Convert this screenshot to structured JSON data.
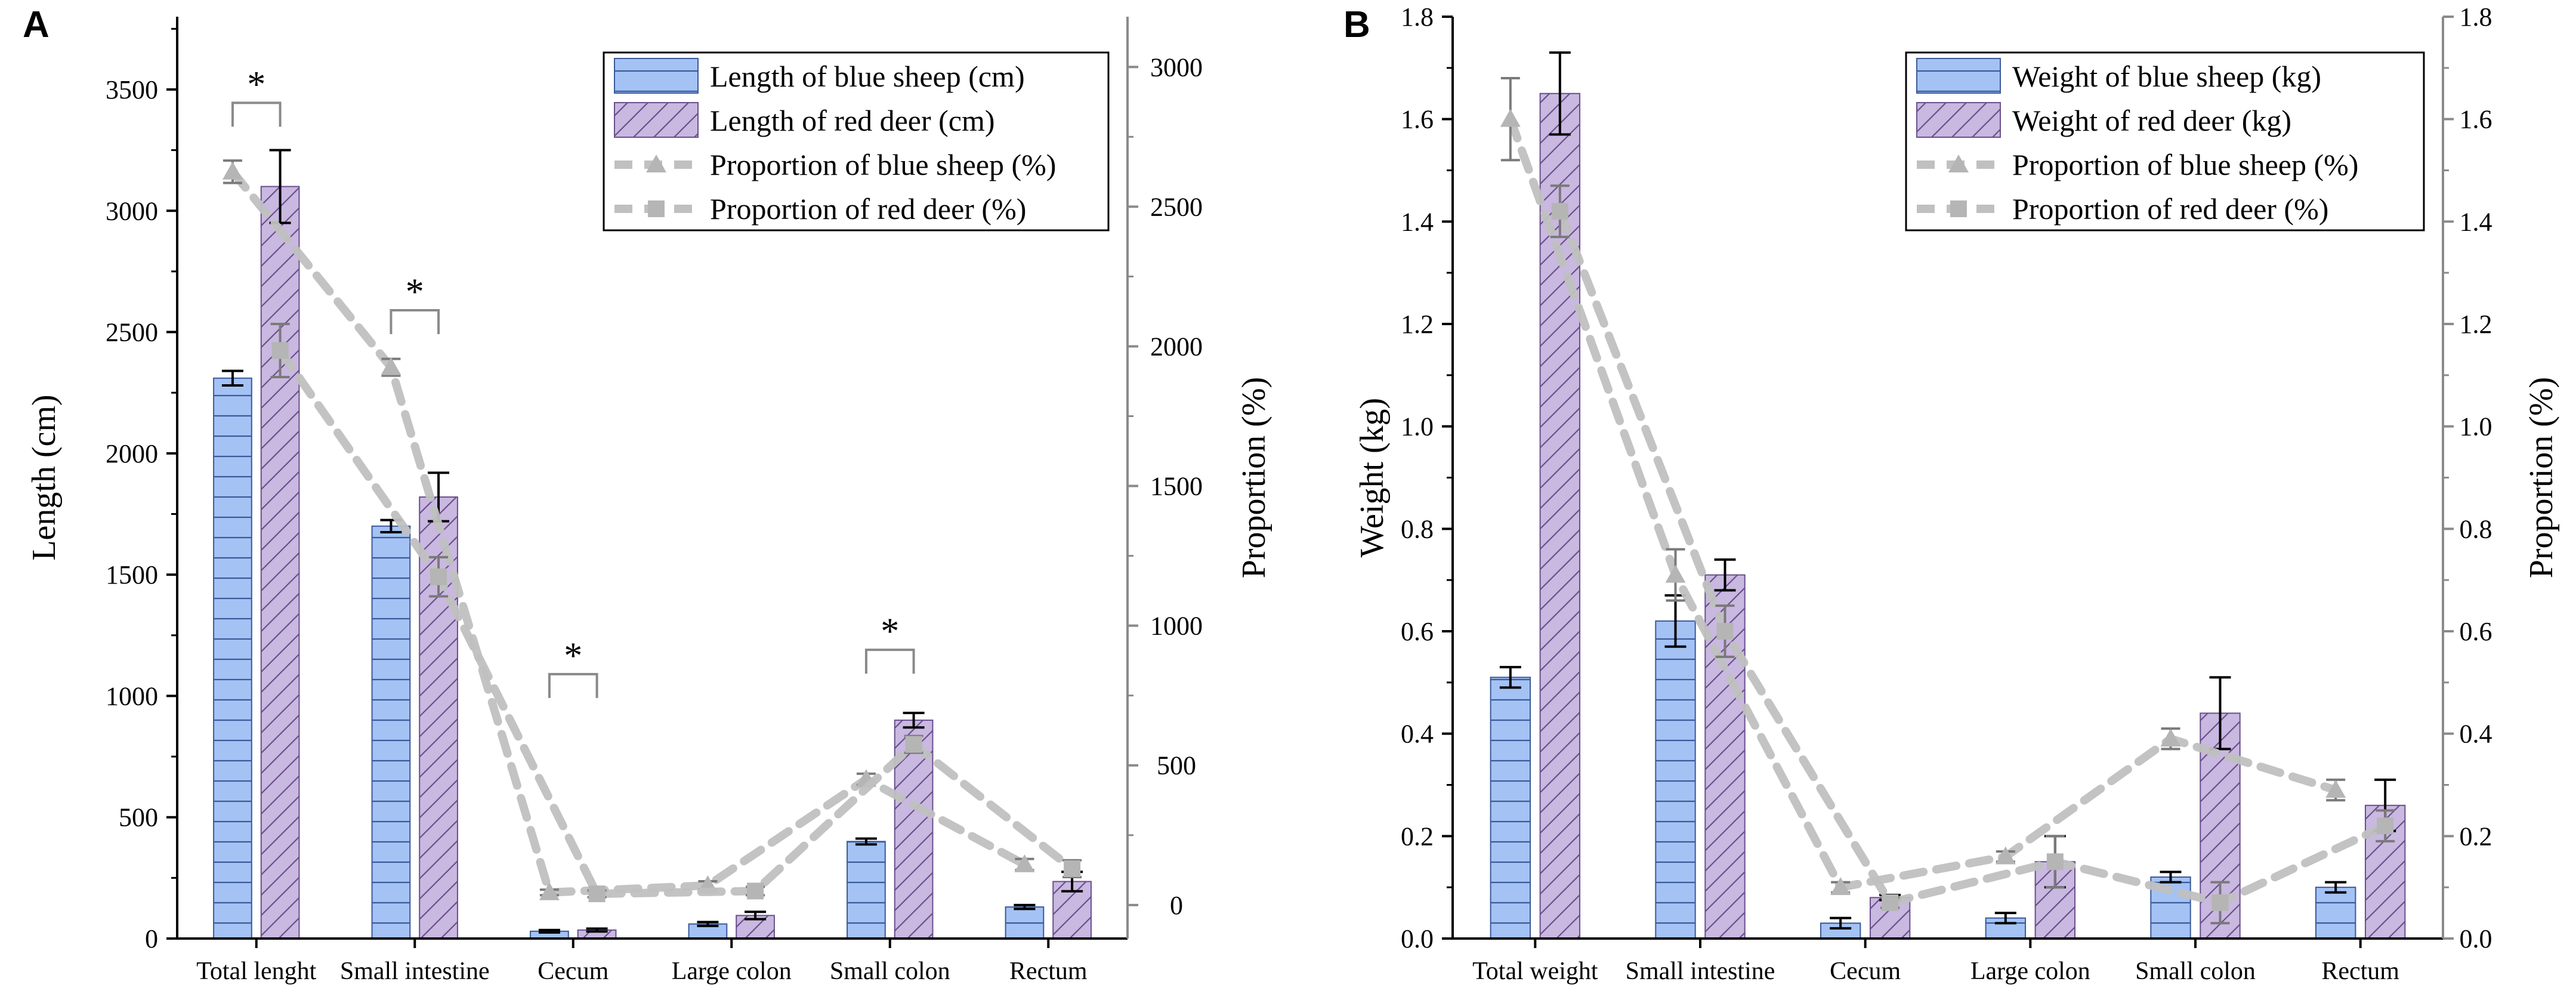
{
  "chart_data": [
    {
      "type": "bar",
      "panel_label": "A",
      "categories": [
        "Total lenght",
        "Small intestine",
        "Cecum",
        "Large colon",
        "Small colon",
        "Rectum"
      ],
      "ylabel": "Length (cm)",
      "y2label": "Proportion (%)",
      "ylim": [
        0,
        3800
      ],
      "yticks": [
        0,
        500,
        1000,
        1500,
        2000,
        2500,
        3000,
        3500
      ],
      "y2lim": [
        -120,
        3180
      ],
      "y2ticks": [
        0,
        500,
        1000,
        1500,
        2000,
        2500,
        3000
      ],
      "series": [
        {
          "name": "Length of blue sheep (cm)",
          "kind": "bar",
          "pattern": "horizontal",
          "color": "#a4c2f4",
          "values": [
            2310,
            1700,
            30,
            60,
            400,
            130
          ],
          "errors": [
            30,
            25,
            5,
            8,
            12,
            8
          ]
        },
        {
          "name": "Length of red deer (cm)",
          "kind": "bar",
          "pattern": "diagonal",
          "color": "#c9b8e0",
          "values": [
            3100,
            1820,
            35,
            95,
            900,
            235
          ],
          "errors": [
            150,
            100,
            6,
            15,
            30,
            40
          ]
        }
      ],
      "lines": [
        {
          "name": "Proportion of blue sheep (%)",
          "marker": "triangle",
          "color": "#c0c0c0",
          "values": [
            2625,
            1925,
            45,
            70,
            450,
            145
          ],
          "errors": [
            40,
            30,
            10,
            15,
            20,
            20
          ]
        },
        {
          "name": "Proportion of red deer (%)",
          "marker": "square",
          "color": "#c0c0c0",
          "values": [
            1985,
            1175,
            40,
            50,
            575,
            130
          ],
          "errors": [
            95,
            70,
            12,
            15,
            30,
            30
          ]
        }
      ],
      "significance": [
        {
          "category": "Total lenght",
          "label": "*",
          "bracket_y": 3445,
          "label_y": 3520
        },
        {
          "category": "Small intestine",
          "label": "*",
          "bracket_y": 2590,
          "label_y": 2665
        },
        {
          "category": "Cecum",
          "label": "*",
          "bracket_y": 1090,
          "label_y": 1165
        },
        {
          "category": "Small colon",
          "label": "*",
          "bracket_y": 1190,
          "label_y": 1265
        }
      ],
      "legend_position": "top-right"
    },
    {
      "type": "bar",
      "panel_label": "B",
      "categories": [
        "Total weight",
        "Small intestine",
        "Cecum",
        "Large colon",
        "Small colon",
        "Rectum"
      ],
      "ylabel": "Weight (kg)",
      "y2label": "Proportion (%)",
      "ylim": [
        0,
        1.8
      ],
      "yticks": [
        0.0,
        0.2,
        0.4,
        0.6,
        0.8,
        1.0,
        1.2,
        1.4,
        1.6,
        1.8
      ],
      "y2lim": [
        0,
        1.8
      ],
      "y2ticks": [
        0.0,
        0.2,
        0.4,
        0.6,
        0.8,
        1.0,
        1.2,
        1.4,
        1.6,
        1.8
      ],
      "series": [
        {
          "name": "Weight of blue sheep (kg)",
          "kind": "bar",
          "pattern": "horizontal",
          "color": "#a4c2f4",
          "values": [
            0.51,
            0.62,
            0.03,
            0.04,
            0.12,
            0.1
          ],
          "errors": [
            0.02,
            0.05,
            0.01,
            0.01,
            0.01,
            0.01
          ]
        },
        {
          "name": "Weight of red deer (kg)",
          "kind": "bar",
          "pattern": "diagonal",
          "color": "#c9b8e0",
          "values": [
            1.65,
            0.71,
            0.08,
            0.15,
            0.44,
            0.26
          ],
          "errors": [
            0.08,
            0.03,
            0.005,
            0.05,
            0.07,
            0.05
          ]
        }
      ],
      "lines": [
        {
          "name": "Proportion of blue sheep (%)",
          "marker": "triangle",
          "color": "#c0c0c0",
          "values": [
            1.6,
            0.71,
            0.1,
            0.16,
            0.39,
            0.29
          ],
          "errors": [
            0.08,
            0.05,
            0.01,
            0.01,
            0.02,
            0.02
          ]
        },
        {
          "name": "Proportion of red deer (%)",
          "marker": "square",
          "color": "#c0c0c0",
          "values": [
            1.42,
            0.6,
            0.07,
            0.15,
            0.07,
            0.22
          ],
          "errors": [
            0.05,
            0.05,
            0.01,
            0.05,
            0.04,
            0.03
          ]
        }
      ],
      "significance": [],
      "legend_position": "top-right"
    }
  ]
}
